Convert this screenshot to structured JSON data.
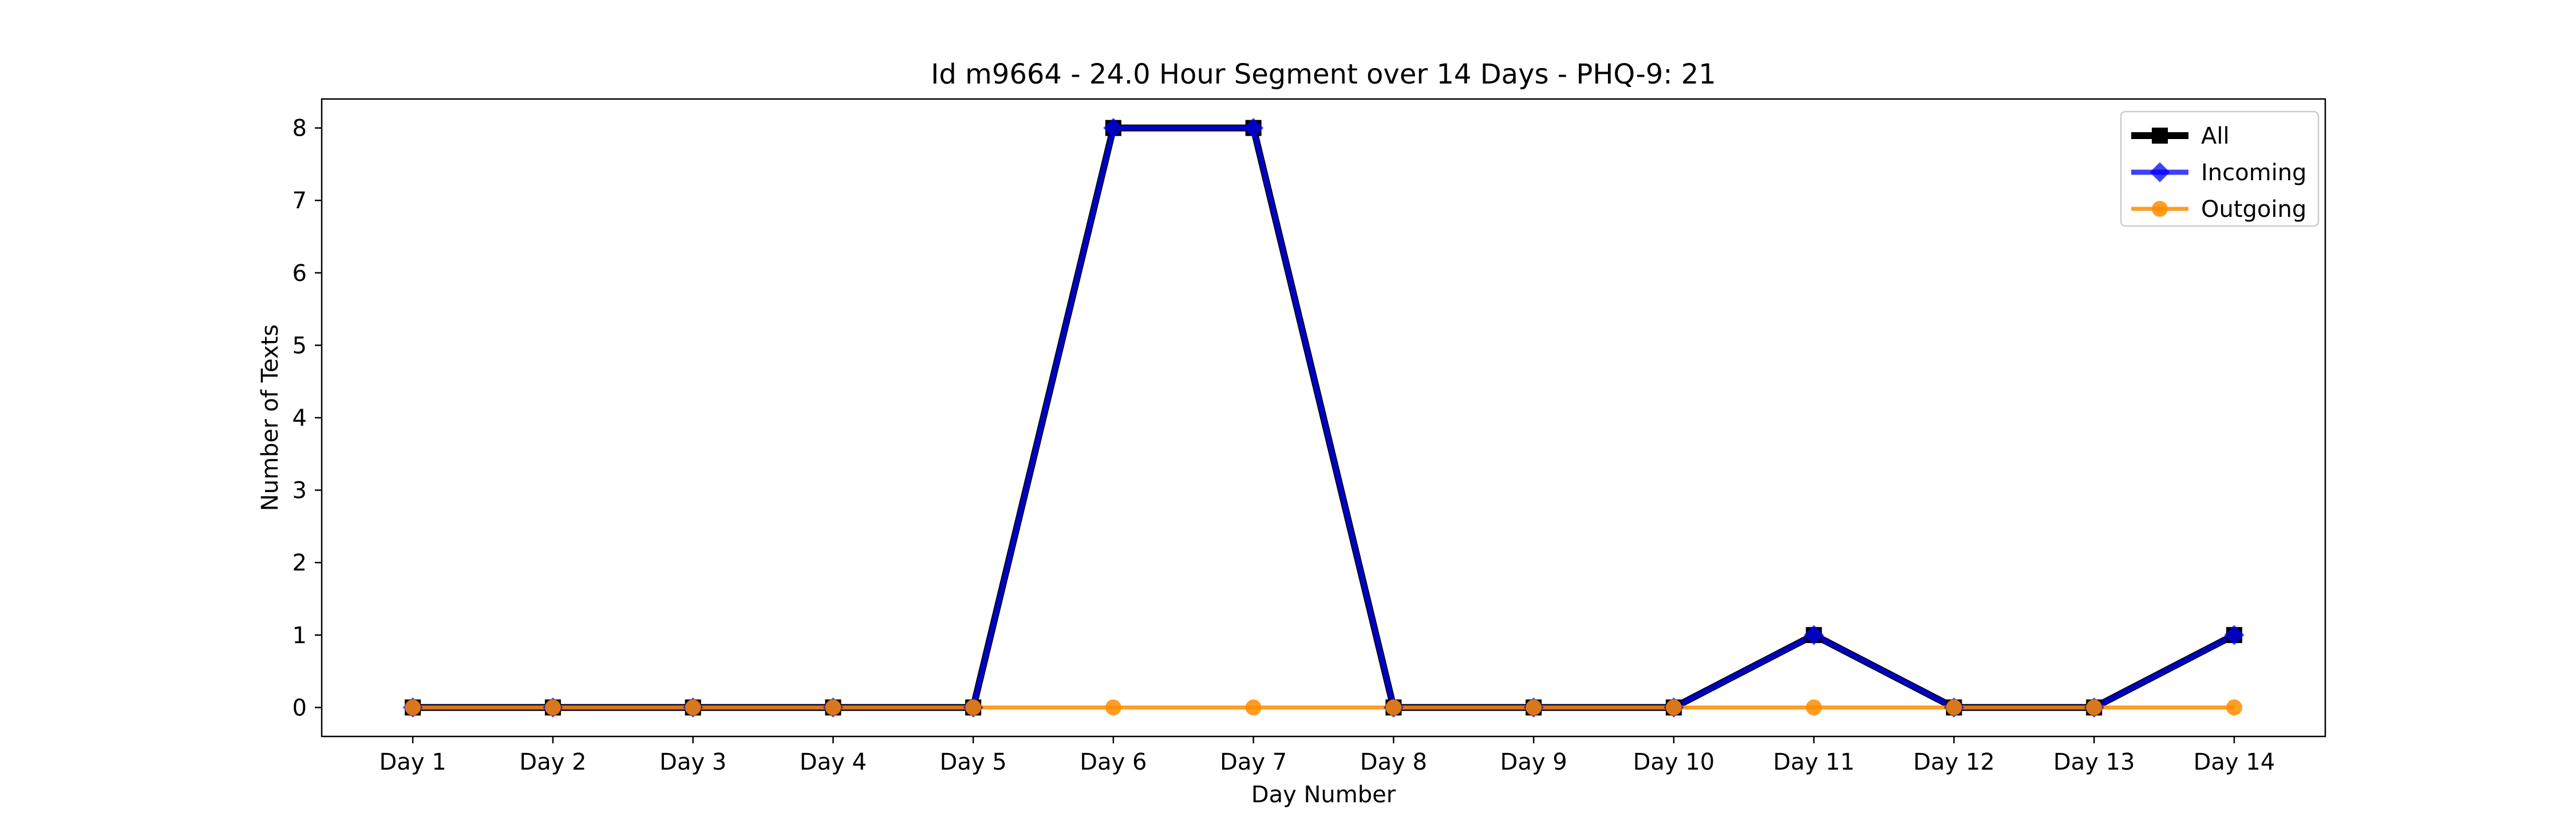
{
  "chart_data": {
    "type": "line",
    "title": "Id m9664 - 24.0 Hour Segment over 14 Days - PHQ-9: 21",
    "xlabel": "Day Number",
    "ylabel": "Number of Texts",
    "categories": [
      "Day 1",
      "Day 2",
      "Day 3",
      "Day 4",
      "Day 5",
      "Day 6",
      "Day 7",
      "Day 8",
      "Day 9",
      "Day 10",
      "Day 11",
      "Day 12",
      "Day 13",
      "Day 14"
    ],
    "ylim": [
      -0.4,
      8.4
    ],
    "yticks": [
      "0",
      "1",
      "2",
      "3",
      "4",
      "5",
      "6",
      "7",
      "8"
    ],
    "grid": false,
    "legend_position": "top-right",
    "series": [
      {
        "name": "All",
        "color": "#000000",
        "marker": "square",
        "values": [
          0,
          0,
          0,
          0,
          0,
          8,
          8,
          0,
          0,
          0,
          1,
          0,
          0,
          1
        ]
      },
      {
        "name": "Incoming",
        "color": "#0000ff",
        "marker": "diamond",
        "values": [
          0,
          0,
          0,
          0,
          0,
          8,
          8,
          0,
          0,
          0,
          1,
          0,
          0,
          1
        ]
      },
      {
        "name": "Outgoing",
        "color": "#ff8c00",
        "marker": "circle",
        "values": [
          0,
          0,
          0,
          0,
          0,
          0,
          0,
          0,
          0,
          0,
          0,
          0,
          0,
          0
        ]
      }
    ]
  }
}
